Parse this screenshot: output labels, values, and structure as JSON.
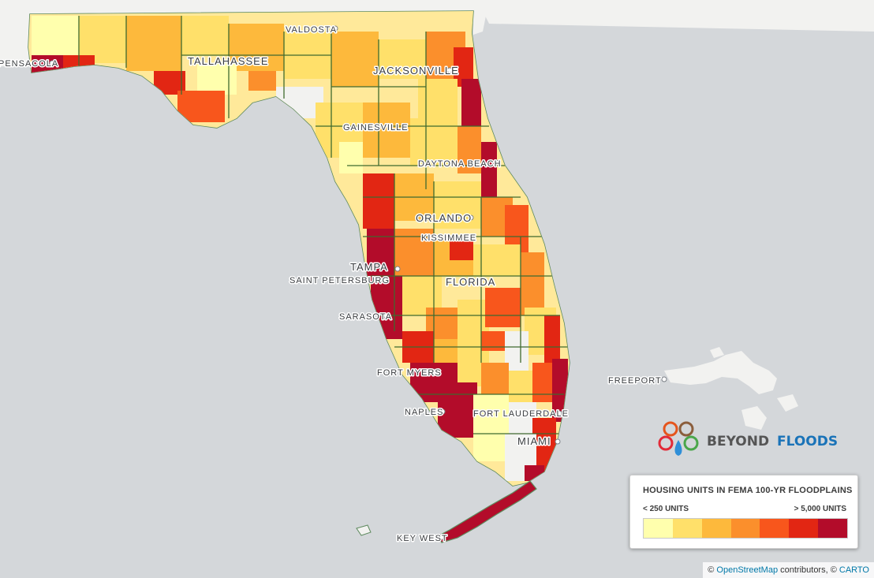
{
  "legend": {
    "title": "HOUSING UNITS IN FEMA 100-YR FLOODPLAINS",
    "min_label": "< 250 UNITS",
    "max_label": "> 5,000 UNITS",
    "colors": [
      "#ffffad",
      "#ffe06a",
      "#fdb93c",
      "#fb8f2c",
      "#f8561c",
      "#e22613",
      "#b30c2a"
    ]
  },
  "logo": {
    "text_part1": "BEYOND",
    "text_part2": "FLOODS",
    "brand_color": "#1a73b8"
  },
  "attribution": {
    "prefix": "©",
    "osm_link": "OpenStreetMap",
    "middle": "contributors, ©",
    "carto_link": "CARTO"
  },
  "cities": [
    {
      "key": "valdosta",
      "name": "VALDOSTA"
    },
    {
      "key": "pensacola",
      "name": "PENSACOLA"
    },
    {
      "key": "tallahassee",
      "name": "TALLAHASSEE"
    },
    {
      "key": "jacksonville",
      "name": "JACKSONVILLE"
    },
    {
      "key": "gainesville",
      "name": "GAINESVILLE"
    },
    {
      "key": "daytona",
      "name": "DAYTONA BEACH"
    },
    {
      "key": "orlando",
      "name": "ORLANDO"
    },
    {
      "key": "kissimmee",
      "name": "KISSIMMEE"
    },
    {
      "key": "tampa",
      "name": "TAMPA"
    },
    {
      "key": "stpete",
      "name": "SAINT PETERSBURG"
    },
    {
      "key": "florida",
      "name": "FLORIDA"
    },
    {
      "key": "sarasota",
      "name": "SARASOTA"
    },
    {
      "key": "fortmyers",
      "name": "FORT MYERS"
    },
    {
      "key": "naples",
      "name": "NAPLES"
    },
    {
      "key": "ftlauderdale",
      "name": "FORT LAUDERDALE"
    },
    {
      "key": "miami",
      "name": "MIAMI"
    },
    {
      "key": "freeport",
      "name": "FREEPORT"
    },
    {
      "key": "keywest",
      "name": "KEY WEST"
    }
  ]
}
